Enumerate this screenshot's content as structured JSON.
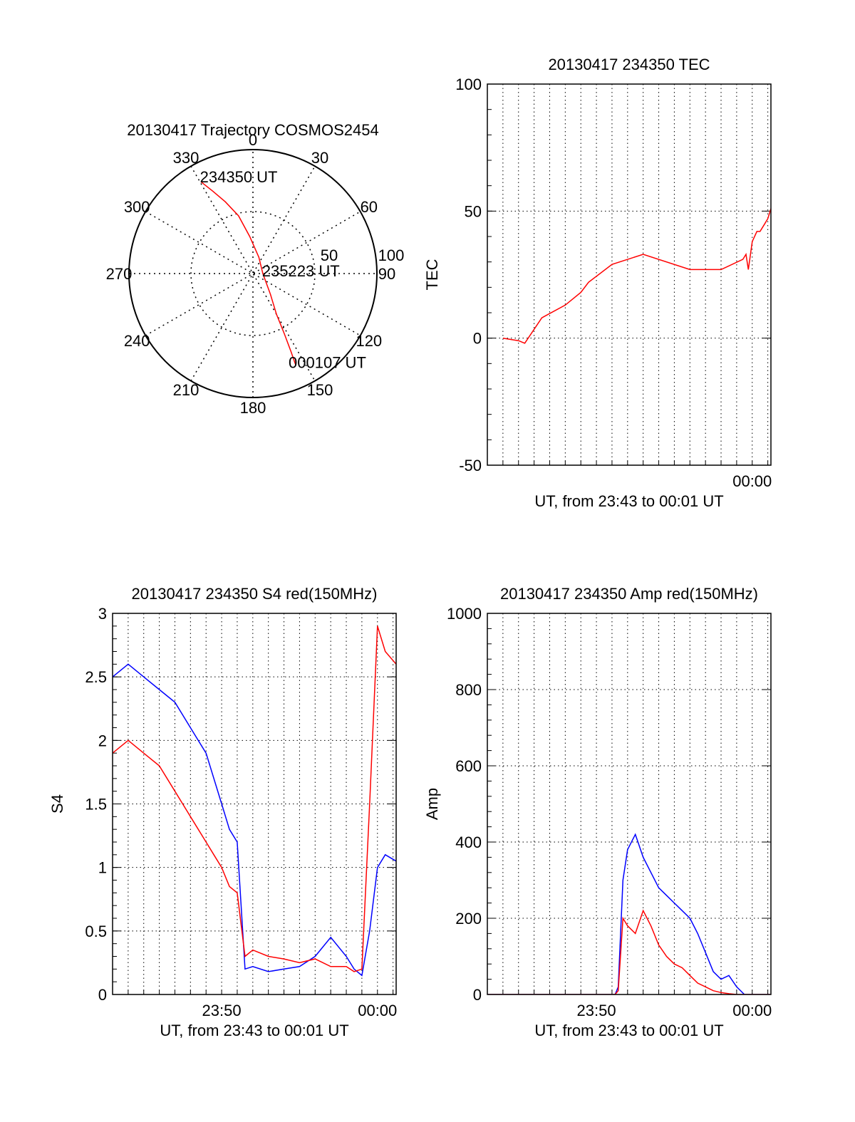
{
  "chart_data": [
    {
      "type": "polar",
      "title": "20130417 Trajectory COSMOS2454",
      "angle_labels": [
        "0",
        "30",
        "60",
        "90",
        "120",
        "150",
        "180",
        "210",
        "240",
        "270",
        "300",
        "330"
      ],
      "radius_labels": [
        "50",
        "100"
      ],
      "rlim": [
        0,
        100
      ],
      "series": [
        {
          "color": "#ff0000",
          "points": [
            [
              330.5,
              85
            ],
            [
              334,
              74
            ],
            [
              339,
              62
            ],
            [
              346,
              48
            ],
            [
              355,
              30
            ],
            [
              20,
              14
            ],
            [
              90,
              8
            ],
            [
              140,
              22
            ],
            [
              150,
              38
            ],
            [
              152.5,
              55
            ],
            [
              154,
              70
            ],
            [
              155,
              82
            ]
          ]
        }
      ],
      "annotations": [
        {
          "text": "234350 UT",
          "az": 333,
          "r": 84
        },
        {
          "text": "235223 UT",
          "az": 95,
          "r": 12
        },
        {
          "text": "000107 UT",
          "az": 156,
          "r": 82
        }
      ]
    },
    {
      "type": "line",
      "title": "20130417 234350 TEC",
      "xlabel": "UT, from 23:43 to 00:01 UT",
      "ylabel": "TEC",
      "xlim": [
        -17,
        1.2
      ],
      "ylim": [
        -50,
        100
      ],
      "yticks": [
        -50,
        0,
        50,
        100
      ],
      "xticks": [
        {
          "value": 0,
          "label": "00:00"
        }
      ],
      "grid": true,
      "series": [
        {
          "color": "#ff0000",
          "x": [
            -16,
            -15,
            -14.6,
            -13.5,
            -12,
            -11,
            -10.5,
            -9,
            -7,
            -4,
            -2,
            -0.6,
            -0.4,
            -0.25,
            0,
            0.3,
            0.5,
            0.8,
            1.0,
            1.2
          ],
          "y": [
            0,
            -1,
            -2,
            8,
            13,
            18,
            22,
            29,
            33,
            27,
            27,
            31,
            33,
            27,
            38,
            42,
            42,
            45,
            47,
            51
          ]
        }
      ]
    },
    {
      "type": "line",
      "title": "20130417 234350 S4 red(150MHz)",
      "xlabel": "UT, from 23:43 to 00:01 UT",
      "ylabel": "S4",
      "xlim": [
        -17,
        1.2
      ],
      "ylim": [
        0,
        3
      ],
      "yticks": [
        0,
        0.5,
        1,
        1.5,
        2,
        2.5,
        3
      ],
      "ytick_labels": [
        "0",
        "0.5",
        "1",
        "1.5",
        "2",
        "2.5",
        "3"
      ],
      "xticks": [
        {
          "value": -10,
          "label": "23:50"
        },
        {
          "value": 0,
          "label": "00:00"
        }
      ],
      "grid": true,
      "series": [
        {
          "name": "",
          "color": "#0000ff",
          "x": [
            -17,
            -16,
            -15,
            -14,
            -13,
            -12,
            -11,
            -10,
            -9.5,
            -9,
            -8.5,
            -8,
            -7,
            -6,
            -5,
            -4,
            -3,
            -2,
            -1.5,
            -1,
            -0.5,
            0,
            0.5,
            1.2
          ],
          "y": [
            2.5,
            2.6,
            2.5,
            2.4,
            2.3,
            2.1,
            1.9,
            1.5,
            1.3,
            1.2,
            0.2,
            0.22,
            0.18,
            0.2,
            0.22,
            0.3,
            0.45,
            0.3,
            0.2,
            0.15,
            0.5,
            1.0,
            1.1,
            1.05
          ]
        },
        {
          "name": "",
          "color": "#ff0000",
          "x": [
            -17,
            -16,
            -15,
            -14,
            -13,
            -12,
            -11,
            -10.5,
            -10,
            -9.5,
            -9,
            -8.5,
            -8,
            -7,
            -6,
            -5,
            -4,
            -3,
            -2,
            -1.5,
            -1,
            -0.5,
            0,
            0.5,
            1.2
          ],
          "y": [
            1.9,
            2.0,
            1.9,
            1.8,
            1.6,
            1.4,
            1.2,
            1.1,
            1.0,
            0.85,
            0.8,
            0.3,
            0.35,
            0.3,
            0.28,
            0.25,
            0.28,
            0.22,
            0.22,
            0.18,
            0.2,
            1.5,
            2.9,
            2.7,
            2.6
          ]
        }
      ]
    },
    {
      "type": "line",
      "title": "20130417 234350 Amp red(150MHz)",
      "xlabel": "UT, from 23:43 to 00:01 UT",
      "ylabel": "Amp",
      "xlim": [
        -17,
        1.2
      ],
      "ylim": [
        0,
        1000
      ],
      "yticks": [
        0,
        200,
        400,
        600,
        800,
        1000
      ],
      "xticks": [
        {
          "value": -10,
          "label": "23:50"
        },
        {
          "value": 0,
          "label": "00:00"
        }
      ],
      "grid": true,
      "series": [
        {
          "name": "",
          "color": "#0000ff",
          "x": [
            -17,
            -14,
            -10,
            -8.8,
            -8.6,
            -8.3,
            -8,
            -7.5,
            -7,
            -6.5,
            -6,
            -5.5,
            -5,
            -4.5,
            -4,
            -3.5,
            -3,
            -2.5,
            -2,
            -1.5,
            -1,
            -0.5,
            0,
            1.2
          ],
          "y": [
            0,
            0,
            0,
            0,
            20,
            300,
            380,
            420,
            360,
            320,
            280,
            260,
            240,
            220,
            200,
            160,
            110,
            60,
            40,
            50,
            20,
            0,
            0,
            0
          ]
        },
        {
          "name": "",
          "color": "#ff0000",
          "x": [
            -17,
            -14,
            -10,
            -8.8,
            -8.6,
            -8.3,
            -8,
            -7.5,
            -7,
            -6.5,
            -6,
            -5.5,
            -5,
            -4.5,
            -4,
            -3.5,
            -3,
            -2.5,
            -2,
            -1.5,
            -1,
            -0.5,
            0,
            1.2
          ],
          "y": [
            0,
            0,
            0,
            0,
            10,
            200,
            180,
            160,
            220,
            180,
            130,
            100,
            80,
            70,
            50,
            30,
            20,
            10,
            5,
            2,
            0,
            0,
            0,
            0
          ]
        }
      ]
    }
  ]
}
